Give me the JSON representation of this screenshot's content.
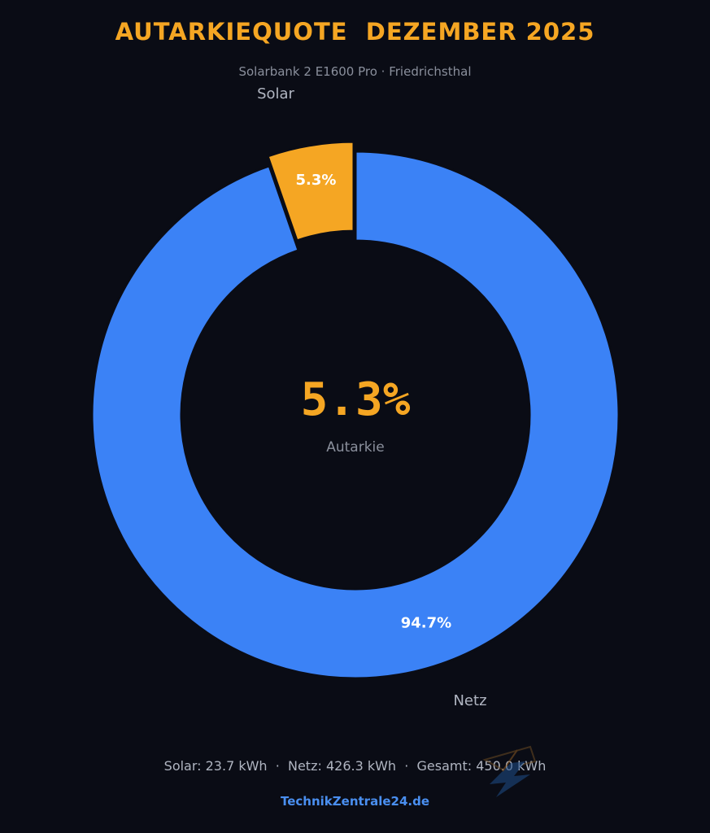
{
  "header": {
    "title": "AUTARKIEQUOTE  DEZEMBER 2025",
    "subtitle": "Solarbank 2 E1600 Pro · Friedrichsthal"
  },
  "chart_data": {
    "type": "donut",
    "slices": [
      {
        "name": "Solar",
        "value": 5.3,
        "label": "5.3%",
        "color": "#f5a623",
        "exploded": true
      },
      {
        "name": "Netz",
        "value": 94.7,
        "label": "94.7%",
        "color": "#3b82f6",
        "exploded": false
      }
    ],
    "center_value": "5.3%",
    "center_label": "Autarkie",
    "start_angle": "12 o'clock",
    "direction": "counterclockwise"
  },
  "footer": {
    "stats": "Solar: 23.7 kWh  ·  Netz: 426.3 kWh  ·  Gesamt: 450.0 kWh",
    "brand": "TechnikZentrale24.de"
  },
  "colors": {
    "background": "#0a0c15",
    "accent": "#f5a623",
    "grid_color": "#3b82f6"
  },
  "icons": {
    "watermark": "lightning-bolt-logo-icon"
  }
}
